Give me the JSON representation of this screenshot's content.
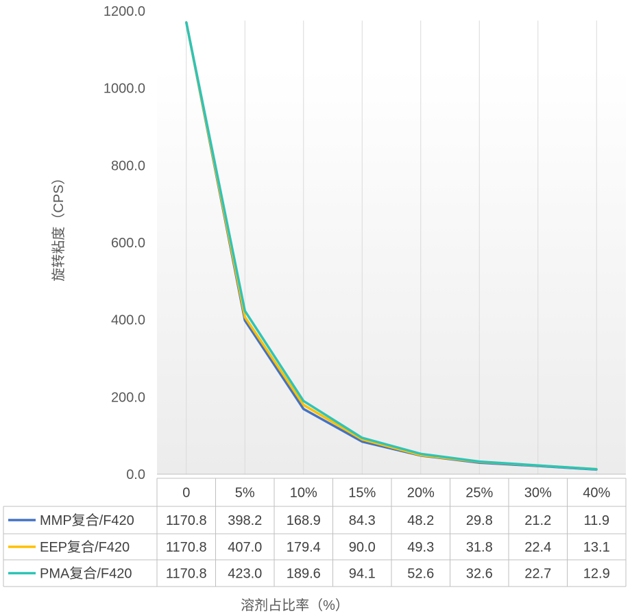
{
  "chart_data": {
    "type": "line",
    "title": "",
    "xlabel": "溶剂占比率（%）",
    "ylabel": "旋转粘度（CPS）",
    "ylim": [
      0,
      1200
    ],
    "yticks": [
      "0.0",
      "200.0",
      "400.0",
      "600.0",
      "800.0",
      "1000.0",
      "1200.0"
    ],
    "categories": [
      "0",
      "5%",
      "10%",
      "15%",
      "20%",
      "25%",
      "30%",
      "40%"
    ],
    "grid": "vertical",
    "legend": "data-table-left",
    "series": [
      {
        "name": "MMP复合/F420",
        "color": "#4472C4",
        "values": [
          1170.8,
          398.2,
          168.9,
          84.3,
          48.2,
          29.8,
          21.2,
          11.9
        ],
        "labels": [
          "1170.8",
          "398.2",
          "168.9",
          "84.3",
          "48.2",
          "29.8",
          "21.2",
          "11.9"
        ]
      },
      {
        "name": "EEP复合/F420",
        "color": "#FFC000",
        "values": [
          1170.8,
          407.0,
          179.4,
          90.0,
          49.3,
          31.8,
          22.4,
          13.1
        ],
        "labels": [
          "1170.8",
          "407.0",
          "179.4",
          "90.0",
          "49.3",
          "31.8",
          "22.4",
          "13.1"
        ]
      },
      {
        "name": "PMA复合/F420",
        "color": "#2EC4B6",
        "values": [
          1170.8,
          423.0,
          189.6,
          94.1,
          52.6,
          32.6,
          22.7,
          12.9
        ],
        "labels": [
          "1170.8",
          "423.0",
          "189.6",
          "94.1",
          "52.6",
          "32.6",
          "22.7",
          "12.9"
        ]
      }
    ]
  }
}
